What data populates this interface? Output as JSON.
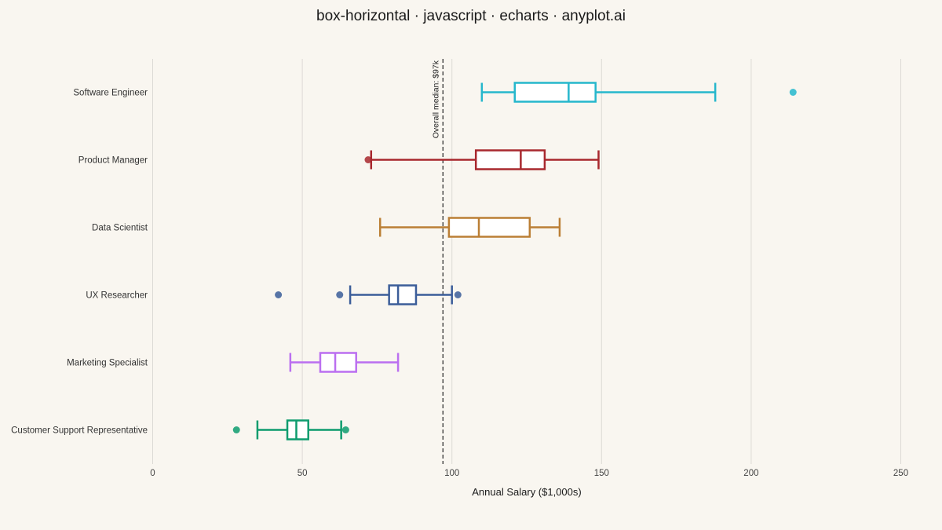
{
  "chart_data": {
    "type": "boxplot",
    "orientation": "horizontal",
    "title": "box-horizontal · javascript · echarts · anyplot.ai",
    "xlabel": "Annual Salary ($1,000s)",
    "ylabel": "",
    "xlim": [
      0,
      250
    ],
    "xticks": [
      0,
      50,
      100,
      150,
      200,
      250
    ],
    "grid": true,
    "reference_line": {
      "value": 97,
      "label": "Overall median: $97k"
    },
    "categories": [
      "Software Engineer",
      "Product Manager",
      "Data Scientist",
      "UX Researcher",
      "Marketing Specialist",
      "Customer Support Representative"
    ],
    "series": [
      {
        "category": "Software Engineer",
        "color": "#26b7cc",
        "min": 110,
        "q1": 121,
        "median": 139,
        "q3": 148,
        "max": 188,
        "outliers": [
          214
        ]
      },
      {
        "category": "Product Manager",
        "color": "#a8282e",
        "min": 73,
        "q1": 108,
        "median": 123,
        "q3": 131,
        "max": 149,
        "outliers": [
          72
        ]
      },
      {
        "category": "Data Scientist",
        "color": "#bb7f35",
        "min": 76,
        "q1": 99,
        "median": 109,
        "q3": 126,
        "max": 136,
        "outliers": []
      },
      {
        "category": "UX Researcher",
        "color": "#3b5d99",
        "min": 66,
        "q1": 79,
        "median": 82,
        "q3": 88,
        "max": 100,
        "outliers": [
          42,
          62.5,
          102
        ]
      },
      {
        "category": "Marketing Specialist",
        "color": "#bb6ff0",
        "min": 46,
        "q1": 56,
        "median": 61,
        "q3": 68,
        "max": 82,
        "outliers": []
      },
      {
        "category": "Customer Support Representative",
        "color": "#0e9c6e",
        "min": 35,
        "q1": 45,
        "median": 48,
        "q3": 52,
        "max": 63,
        "outliers": [
          28,
          64.5
        ]
      }
    ]
  }
}
